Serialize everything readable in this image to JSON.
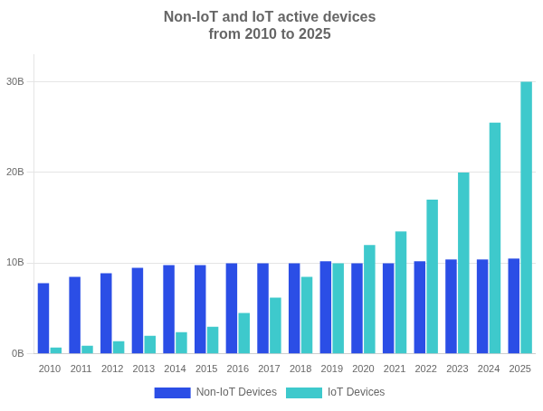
{
  "chart_data": {
    "type": "bar",
    "title": "Non-IoT and IoT active devices\nfrom 2010 to 2025",
    "categories": [
      "2010",
      "2011",
      "2012",
      "2013",
      "2014",
      "2015",
      "2016",
      "2017",
      "2018",
      "2019",
      "2020",
      "2021",
      "2022",
      "2023",
      "2024",
      "2025"
    ],
    "series": [
      {
        "name": "Non-IoT Devices",
        "color": "#2B4EE6",
        "values": [
          7.8,
          8.5,
          8.9,
          9.5,
          9.8,
          9.8,
          10.0,
          10.0,
          10.0,
          10.2,
          10.0,
          10.0,
          10.2,
          10.4,
          10.4,
          10.5
        ]
      },
      {
        "name": "IoT Devices",
        "color": "#3EC9CC",
        "values": [
          0.7,
          0.9,
          1.4,
          2.0,
          2.4,
          3.0,
          4.5,
          6.2,
          8.5,
          10.0,
          12.0,
          13.5,
          17.0,
          20.0,
          25.5,
          30.0
        ]
      }
    ],
    "ylim": [
      0,
      33
    ],
    "yticks": [
      {
        "value": 0,
        "label": "0B"
      },
      {
        "value": 10,
        "label": "10B"
      },
      {
        "value": 20,
        "label": "20B"
      },
      {
        "value": 30,
        "label": "30B"
      }
    ],
    "grid": true,
    "legend": "bottom"
  }
}
